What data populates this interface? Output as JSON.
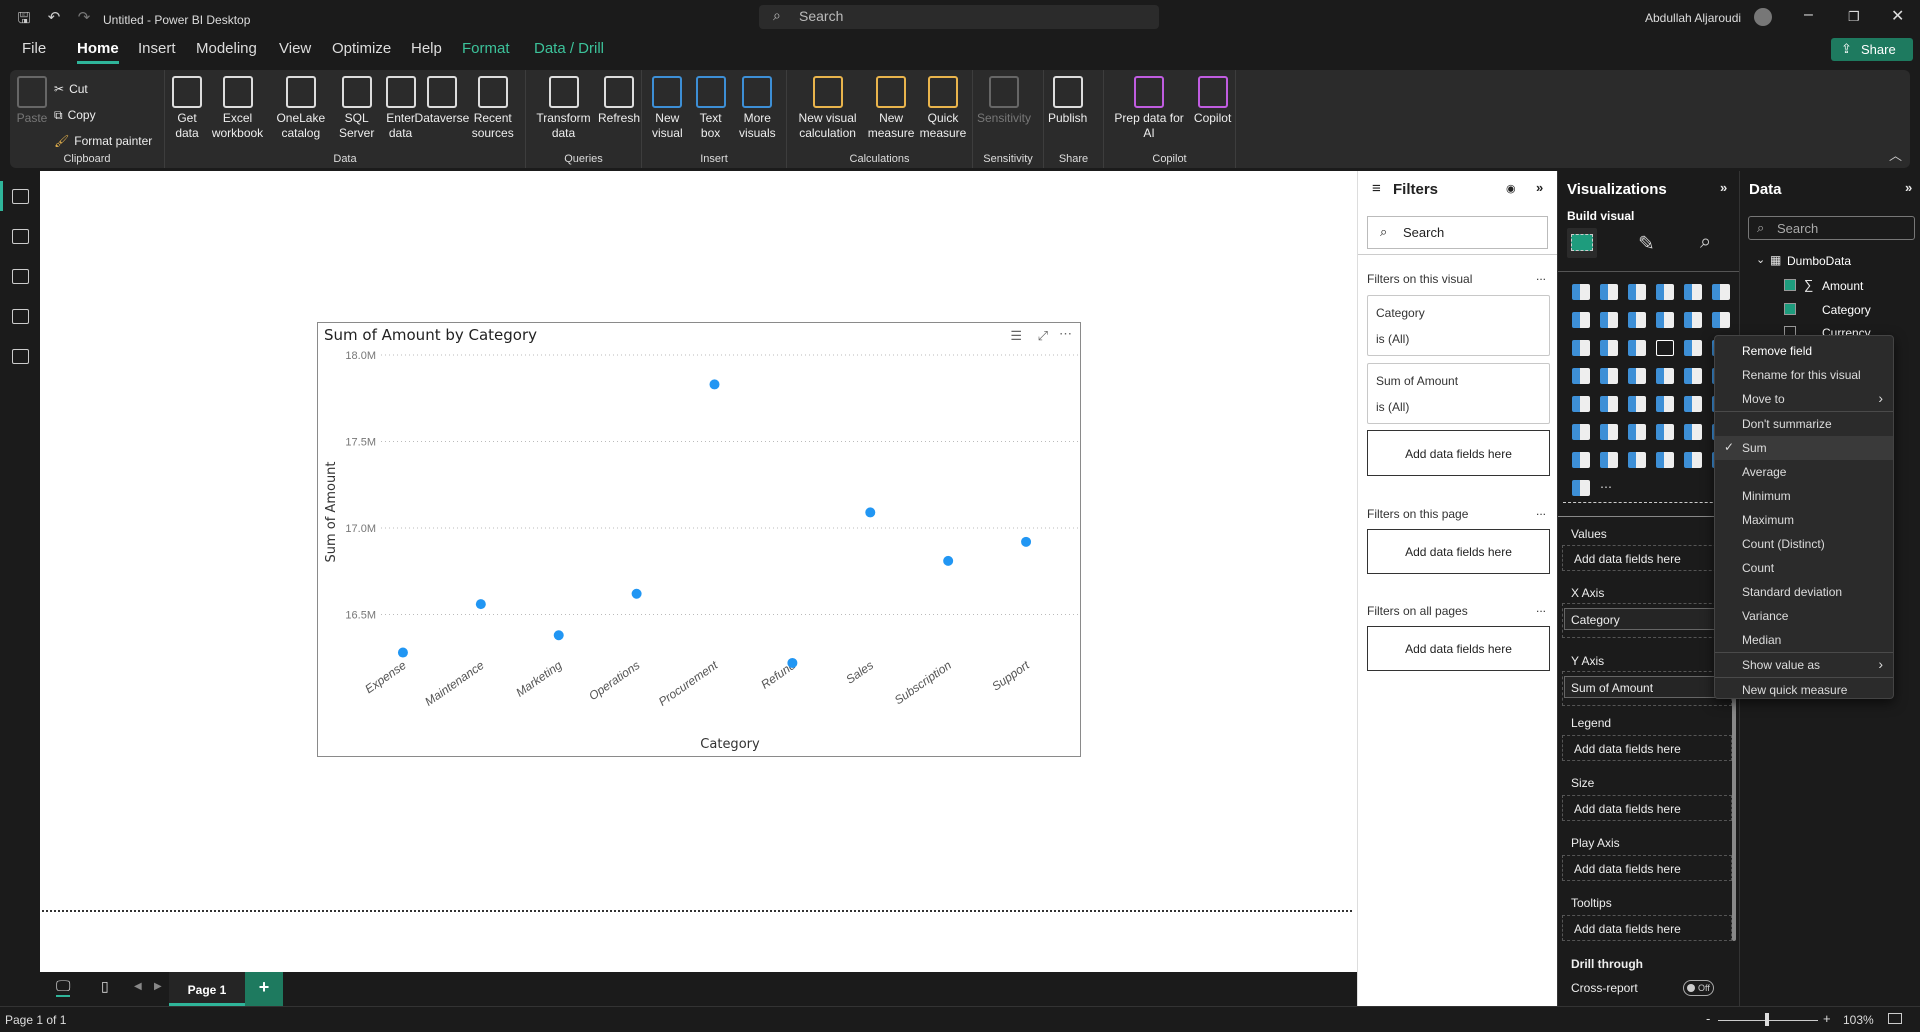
{
  "titlebar": {
    "title": "Untitled - Power BI Desktop",
    "search_placeholder": "Search",
    "user": "Abdullah Aljaroudi"
  },
  "menu": {
    "items": [
      "File",
      "Home",
      "Insert",
      "Modeling",
      "View",
      "Optimize",
      "Help",
      "Format",
      "Data / Drill"
    ],
    "active": "Home",
    "share": "Share"
  },
  "ribbon": {
    "clipboard": {
      "label": "Clipboard",
      "paste": "Paste",
      "cut": "Cut",
      "copy": "Copy",
      "format_painter": "Format painter"
    },
    "data": {
      "label": "Data",
      "buttons": [
        "Get data",
        "Excel workbook",
        "OneLake catalog",
        "SQL Server",
        "Enter data",
        "Dataverse",
        "Recent sources"
      ]
    },
    "queries": {
      "label": "Queries",
      "buttons": [
        "Transform data",
        "Refresh"
      ]
    },
    "insert": {
      "label": "Insert",
      "buttons": [
        "New visual",
        "Text box",
        "More visuals"
      ]
    },
    "calculations": {
      "label": "Calculations",
      "buttons": [
        "New visual calculation",
        "New measure",
        "Quick measure"
      ]
    },
    "sensitivity": {
      "label": "Sensitivity",
      "buttons": [
        "Sensitivity"
      ]
    },
    "share": {
      "label": "Share",
      "buttons": [
        "Publish"
      ]
    },
    "copilot": {
      "label": "Copilot",
      "buttons": [
        "Prep data for AI",
        "Copilot"
      ]
    }
  },
  "chart_data": {
    "type": "scatter",
    "title": "Sum of Amount by Category",
    "xlabel": "Category",
    "ylabel": "Sum of Amount",
    "categories": [
      "Expense",
      "Maintenance",
      "Marketing",
      "Operations",
      "Procurement",
      "Refund",
      "Sales",
      "Subscription",
      "Support"
    ],
    "values": [
      16.28,
      16.56,
      16.38,
      16.62,
      17.83,
      16.22,
      17.09,
      16.81,
      16.92
    ],
    "value_unit": "M",
    "yticks": [
      "16.5M",
      "17.0M",
      "17.5M",
      "18.0M"
    ],
    "ytick_values": [
      16.5,
      17.0,
      17.5,
      18.0
    ],
    "ylim": [
      16.2,
      18.05
    ],
    "grid": true,
    "color": "#2196f3"
  },
  "filters": {
    "title": "Filters",
    "search_placeholder": "Search",
    "on_visual": "Filters on this visual",
    "cards": [
      {
        "field": "Category",
        "state": "is (All)"
      },
      {
        "field": "Sum of Amount",
        "state": "is (All)"
      }
    ],
    "add": "Add data fields here",
    "on_page": "Filters on this page",
    "on_all": "Filters on all pages",
    "more": "..."
  },
  "viz": {
    "title": "Visualizations",
    "build": "Build visual",
    "icons": [
      "stacked-bar",
      "stacked-column",
      "clustered-bar",
      "clustered-column",
      "100-bar",
      "100-column",
      "line",
      "area",
      "stacked-area",
      "100-area",
      "line-column",
      "line-clustered",
      "ribbon",
      "waterfall",
      "funnel",
      "scatter",
      "pie",
      "donut",
      "treemap",
      "map",
      "filled-map",
      "azure-map",
      "gauge",
      "arcgis",
      "kpi",
      "slicer",
      "table",
      "matrix",
      "r-visual",
      "python",
      "key-influencers",
      "decomposition-tree",
      "qa",
      "paginated",
      "goals",
      "slicer-2",
      "smart-narrative",
      "card",
      "button-slicer",
      "image",
      "power-automate",
      "power-apps",
      "power-automate-2",
      "more"
    ],
    "wells": {
      "values": "Values",
      "x_axis": "X Axis",
      "x_value": "Category",
      "y_axis": "Y Axis",
      "y_value": "Sum of Amount",
      "legend": "Legend",
      "size": "Size",
      "play_axis": "Play Axis",
      "tooltips": "Tooltips",
      "add": "Add data fields here",
      "drill": "Drill through",
      "cross": "Cross-report",
      "toggle": "Off"
    }
  },
  "data": {
    "title": "Data",
    "search_placeholder": "Search",
    "table": "DumboData",
    "fields": [
      {
        "name": "Amount",
        "checked": true,
        "sigma": "∑"
      },
      {
        "name": "Category",
        "checked": true
      },
      {
        "name": "Currency",
        "checked": false
      }
    ]
  },
  "context_menu": {
    "items": [
      "Remove field",
      "Rename for this visual",
      "Move to",
      "Don't summarize",
      "Sum",
      "Average",
      "Minimum",
      "Maximum",
      "Count (Distinct)",
      "Count",
      "Standard deviation",
      "Variance",
      "Median",
      "Show value as",
      "New quick measure"
    ],
    "selected": "Sum"
  },
  "pages": {
    "tab": "Page 1",
    "add": "+"
  },
  "status": {
    "page": "Page 1 of 1",
    "zoom": "103%"
  }
}
